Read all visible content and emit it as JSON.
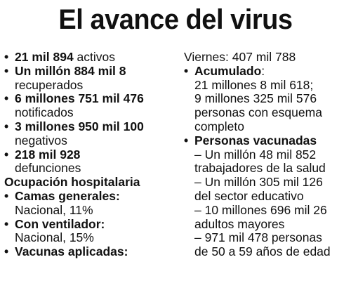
{
  "title": "El avance del virus",
  "left_column": {
    "stats": [
      {
        "bold": "21 mil 894",
        "rest": " activos"
      },
      {
        "bold": "Un millón 884 mil 8",
        "rest": "recuperados"
      },
      {
        "bold": "6 millones 751 mil 476",
        "rest": "notificados"
      },
      {
        "bold": "3 millones 950 mil 100",
        "rest": "negativos"
      },
      {
        "bold": "218 mil 928",
        "rest": "defunciones"
      }
    ],
    "occupancy_heading": "Ocupación hospitalaria",
    "occupancy": [
      {
        "bold": "Camas generales:",
        "rest": "Nacional, 11%"
      },
      {
        "bold": "Con ventilador:",
        "rest": "Nacional, 15%"
      }
    ],
    "vaccines_applied": "Vacunas aplicadas:"
  },
  "right_column": {
    "friday_line": "Viernes: 407 mil 788",
    "accumulated": {
      "bold": "Acumulado",
      "colon": ":",
      "lines": [
        "21 millones 8 mil 618;",
        "9 millones 325 mil 576",
        "personas con esquema",
        "completo"
      ]
    },
    "vaccinated": {
      "bold": "Personas vacunadas",
      "lines": [
        "– Un millón 48 mil 852",
        "trabajadores de la salud",
        "– Un millón 305 mil 126",
        "del sector educativo",
        "– 10 millones 696 mil 26",
        "adultos mayores",
        "– 971 mil 478 personas",
        "de 50 a 59 años de edad"
      ]
    }
  },
  "bullet_glyph": "•"
}
